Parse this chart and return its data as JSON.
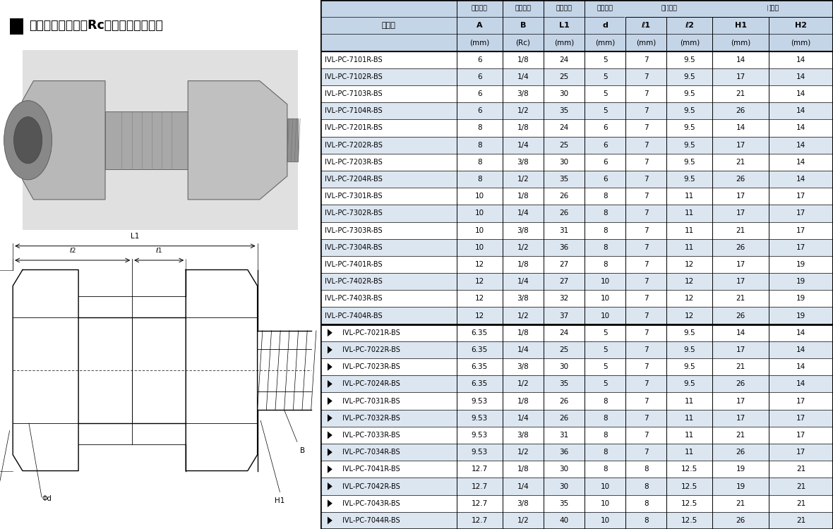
{
  "title_black_square": "■",
  "title_text": "圧力計ユニオン（Rc）　テーパーネジ",
  "rows": [
    [
      "IVL-PC-7101R-BS",
      "6",
      "1/8",
      "24",
      "5",
      "7",
      "9.5",
      "14",
      "14",
      false
    ],
    [
      "IVL-PC-7102R-BS",
      "6",
      "1/4",
      "25",
      "5",
      "7",
      "9.5",
      "17",
      "14",
      false
    ],
    [
      "IVL-PC-7103R-BS",
      "6",
      "3/8",
      "30",
      "5",
      "7",
      "9.5",
      "21",
      "14",
      false
    ],
    [
      "IVL-PC-7104R-BS",
      "6",
      "1/2",
      "35",
      "5",
      "7",
      "9.5",
      "26",
      "14",
      false
    ],
    [
      "IVL-PC-7201R-BS",
      "8",
      "1/8",
      "24",
      "6",
      "7",
      "9.5",
      "14",
      "14",
      false
    ],
    [
      "IVL-PC-7202R-BS",
      "8",
      "1/4",
      "25",
      "6",
      "7",
      "9.5",
      "17",
      "14",
      false
    ],
    [
      "IVL-PC-7203R-BS",
      "8",
      "3/8",
      "30",
      "6",
      "7",
      "9.5",
      "21",
      "14",
      false
    ],
    [
      "IVL-PC-7204R-BS",
      "8",
      "1/2",
      "35",
      "6",
      "7",
      "9.5",
      "26",
      "14",
      false
    ],
    [
      "IVL-PC-7301R-BS",
      "10",
      "1/8",
      "26",
      "8",
      "7",
      "11",
      "17",
      "17",
      false
    ],
    [
      "IVL-PC-7302R-BS",
      "10",
      "1/4",
      "26",
      "8",
      "7",
      "11",
      "17",
      "17",
      false
    ],
    [
      "IVL-PC-7303R-BS",
      "10",
      "3/8",
      "31",
      "8",
      "7",
      "11",
      "21",
      "17",
      false
    ],
    [
      "IVL-PC-7304R-BS",
      "10",
      "1/2",
      "36",
      "8",
      "7",
      "11",
      "26",
      "17",
      false
    ],
    [
      "IVL-PC-7401R-BS",
      "12",
      "1/8",
      "27",
      "8",
      "7",
      "12",
      "17",
      "19",
      false
    ],
    [
      "IVL-PC-7402R-BS",
      "12",
      "1/4",
      "27",
      "10",
      "7",
      "12",
      "17",
      "19",
      false
    ],
    [
      "IVL-PC-7403R-BS",
      "12",
      "3/8",
      "32",
      "10",
      "7",
      "12",
      "21",
      "19",
      false
    ],
    [
      "IVL-PC-7404R-BS",
      "12",
      "1/2",
      "37",
      "10",
      "7",
      "12",
      "26",
      "19",
      false
    ],
    [
      "IVL-PC-7021R-BS",
      "6.35",
      "1/8",
      "24",
      "5",
      "7",
      "9.5",
      "14",
      "14",
      true
    ],
    [
      "IVL-PC-7022R-BS",
      "6.35",
      "1/4",
      "25",
      "5",
      "7",
      "9.5",
      "17",
      "14",
      true
    ],
    [
      "IVL-PC-7023R-BS",
      "6.35",
      "3/8",
      "30",
      "5",
      "7",
      "9.5",
      "21",
      "14",
      true
    ],
    [
      "IVL-PC-7024R-BS",
      "6.35",
      "1/2",
      "35",
      "5",
      "7",
      "9.5",
      "26",
      "14",
      true
    ],
    [
      "IVL-PC-7031R-BS",
      "9.53",
      "1/8",
      "26",
      "8",
      "7",
      "11",
      "17",
      "17",
      true
    ],
    [
      "IVL-PC-7032R-BS",
      "9.53",
      "1/4",
      "26",
      "8",
      "7",
      "11",
      "17",
      "17",
      true
    ],
    [
      "IVL-PC-7033R-BS",
      "9.53",
      "3/8",
      "31",
      "8",
      "7",
      "11",
      "21",
      "17",
      true
    ],
    [
      "IVL-PC-7034R-BS",
      "9.53",
      "1/2",
      "36",
      "8",
      "7",
      "11",
      "26",
      "17",
      true
    ],
    [
      "IVL-PC-7041R-BS",
      "12.7",
      "1/8",
      "30",
      "8",
      "8",
      "12.5",
      "19",
      "21",
      true
    ],
    [
      "IVL-PC-7042R-BS",
      "12.7",
      "1/4",
      "30",
      "10",
      "8",
      "12.5",
      "19",
      "21",
      true
    ],
    [
      "IVL-PC-7043R-BS",
      "12.7",
      "3/8",
      "35",
      "10",
      "8",
      "12.5",
      "21",
      "21",
      true
    ],
    [
      "IVL-PC-7044R-BS",
      "12.7",
      "1/2",
      "40",
      "10",
      "8",
      "12.5",
      "26",
      "21",
      true
    ]
  ],
  "bg_white": "#ffffff",
  "bg_header": "#c5d5e8",
  "bg_row_light": "#dce6f1",
  "bg_row_white": "#ffffff",
  "separator_row": 16
}
